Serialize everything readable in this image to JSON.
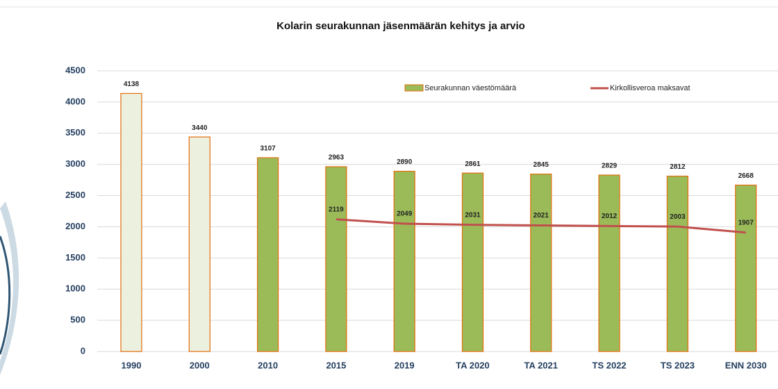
{
  "chart_data": {
    "type": "bar-line",
    "title": "Kolarin seurakunnan jäsenmäärän kehitys ja arvio",
    "categories": [
      "1990",
      "2000",
      "2010",
      "2015",
      "2019",
      "TA 2020",
      "TA 2021",
      "TS 2022",
      "TS 2023",
      "ENN 2030"
    ],
    "series": [
      {
        "name": "Seurakunnan väestömäärä",
        "type": "bar",
        "color": "#9bbb59",
        "edge_color": "#e46c0a",
        "colors": [
          "#ebf1de",
          "#ebf1de",
          "#9bbb59",
          "#9bbb59",
          "#9bbb59",
          "#9bbb59",
          "#9bbb59",
          "#9bbb59",
          "#9bbb59",
          "#9bbb59"
        ],
        "values": [
          4138,
          3440,
          3107,
          2963,
          2890,
          2861,
          2845,
          2829,
          2812,
          2668
        ]
      },
      {
        "name": "Kirkollisveroa maksavat",
        "type": "line",
        "color": "#c0504d",
        "values": [
          null,
          null,
          null,
          2119,
          2049,
          2031,
          2021,
          2012,
          2003,
          1907
        ]
      }
    ],
    "ylim": [
      0,
      4500
    ],
    "yticks": [
      0,
      500,
      1000,
      1500,
      2000,
      2500,
      3000,
      3500,
      4000,
      4500
    ],
    "grid": true,
    "legend": "top-right"
  }
}
